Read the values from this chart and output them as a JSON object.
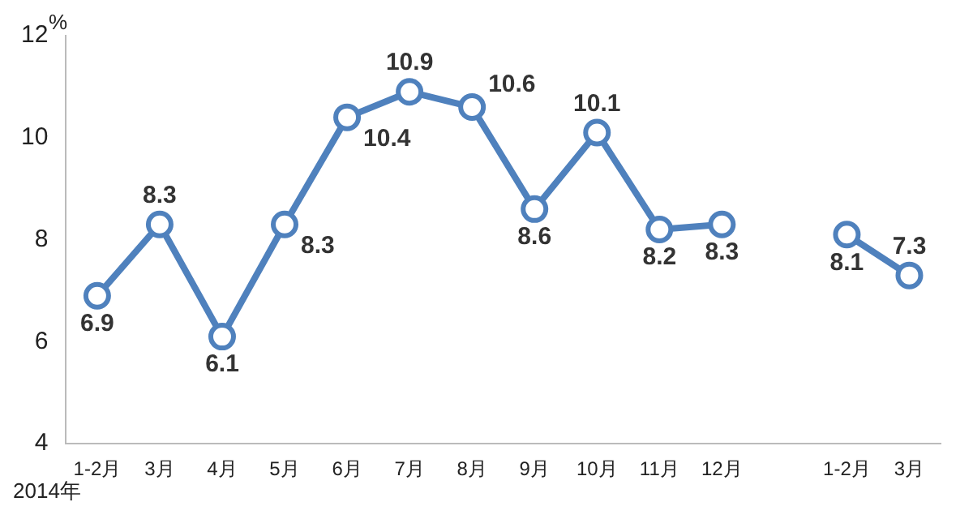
{
  "chart_data": {
    "type": "line",
    "ylabel": "%",
    "categories": [
      "1-2月",
      "3月",
      "4月",
      "5月",
      "6月",
      "7月",
      "8月",
      "9月",
      "10月",
      "11月",
      "12月",
      null,
      "1-2月",
      "3月"
    ],
    "series": [
      {
        "color": "#4f81bd",
        "values": [
          6.9,
          8.3,
          6.1,
          8.3,
          10.4,
          10.9,
          10.6,
          8.6,
          10.1,
          8.2,
          8.3,
          null,
          8.1,
          7.3
        ]
      }
    ],
    "ylim": [
      4,
      12
    ],
    "yticks": [
      4,
      6,
      8,
      10,
      12
    ],
    "grid": false,
    "legend": false,
    "marker": "circle",
    "data_labels": true,
    "annotations": [
      "2014年"
    ]
  }
}
